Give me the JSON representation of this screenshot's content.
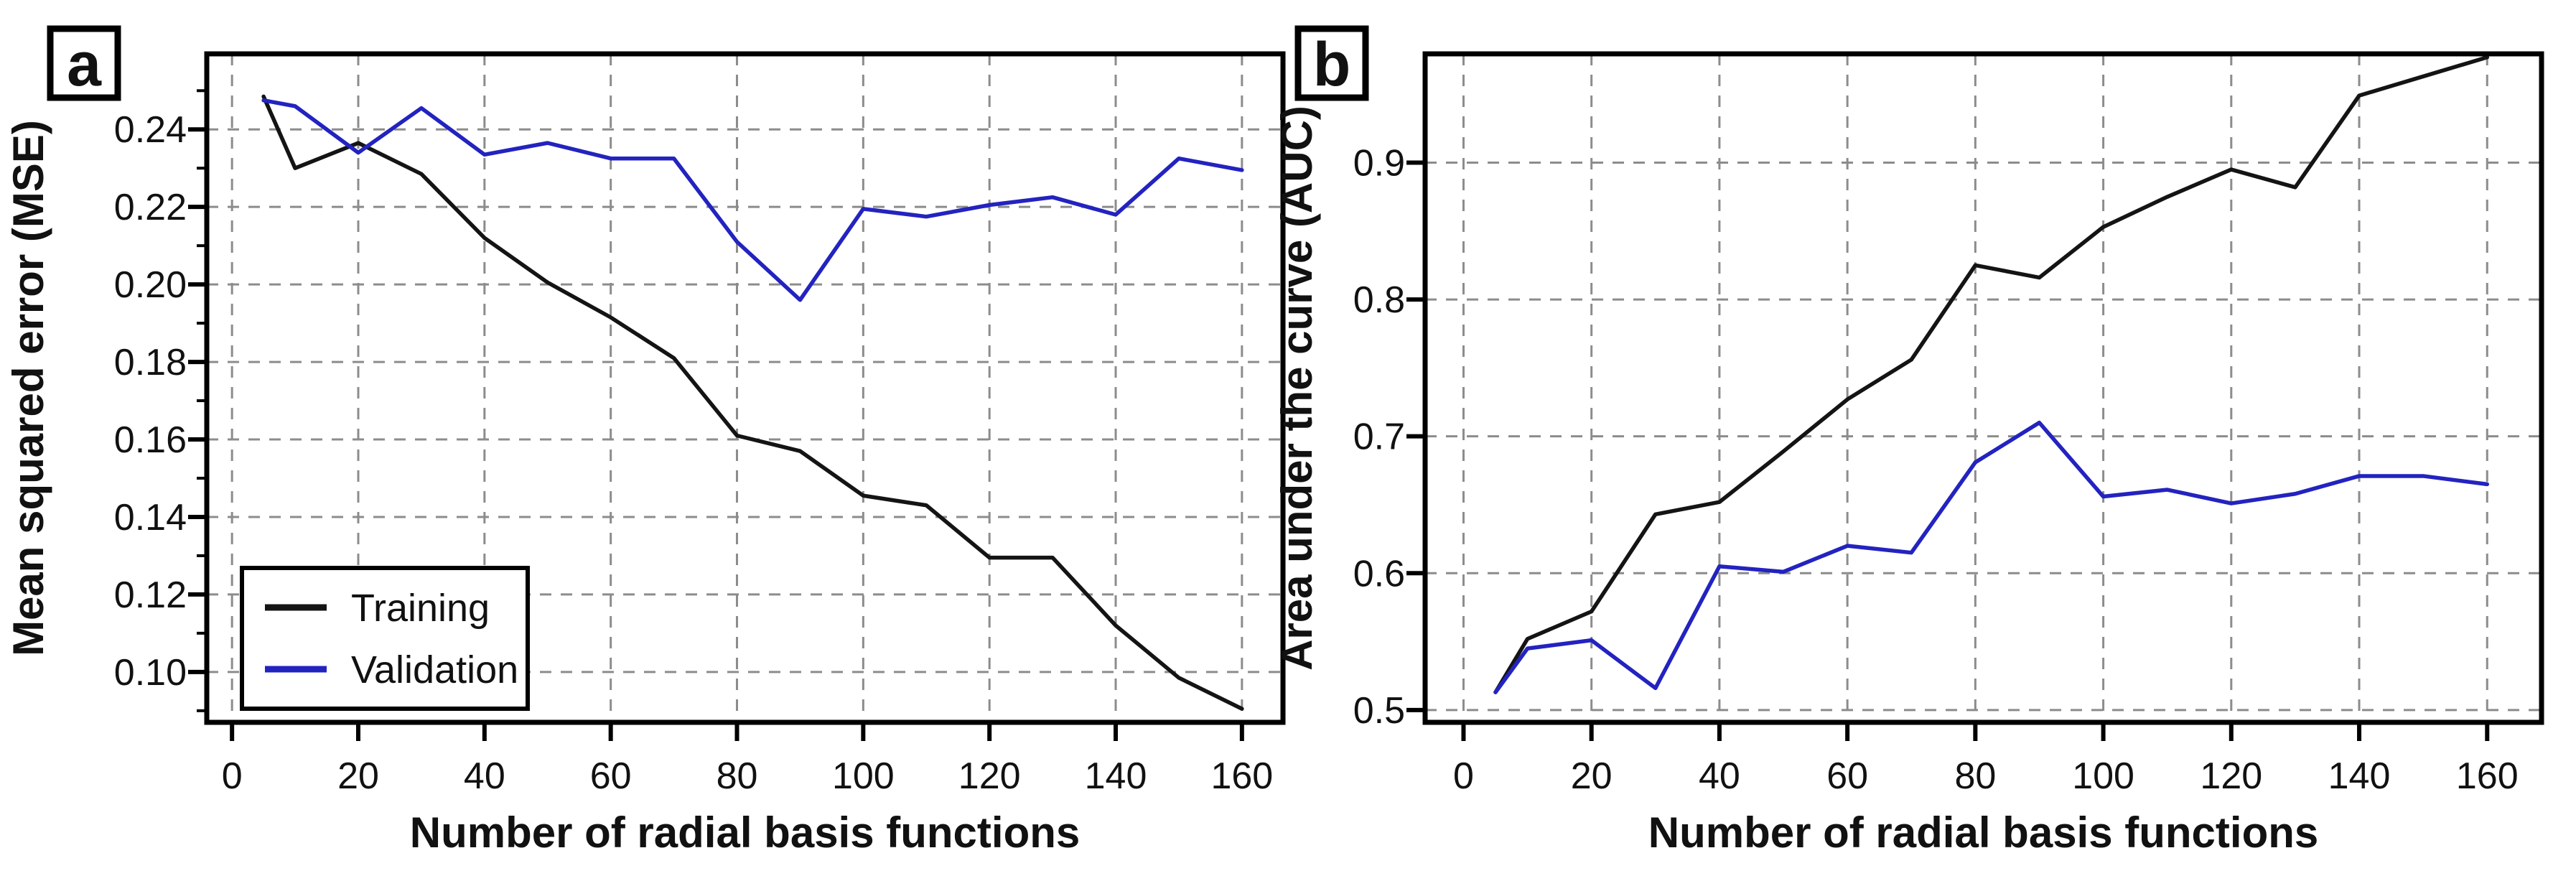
{
  "chart_data": [
    {
      "type": "line",
      "panel_label": "a",
      "title": "",
      "xlabel": "Number of radial basis functions",
      "ylabel": "Mean squared error (MSE)",
      "x": [
        5,
        10,
        20,
        30,
        40,
        50,
        60,
        70,
        80,
        90,
        100,
        110,
        120,
        130,
        140,
        150,
        160
      ],
      "series": [
        {
          "name": "Training",
          "color": "#141414",
          "values": [
            0.2485,
            0.23,
            0.2365,
            0.2285,
            0.212,
            0.2005,
            0.1915,
            0.181,
            0.161,
            0.157,
            0.1455,
            0.143,
            0.1295,
            0.1295,
            0.112,
            0.0985,
            0.0905
          ]
        },
        {
          "name": "Validation",
          "color": "#2323c0",
          "values": [
            0.2475,
            0.246,
            0.234,
            0.2455,
            0.2335,
            0.2365,
            0.2325,
            0.2325,
            0.211,
            0.196,
            0.2195,
            0.2175,
            0.2205,
            0.2225,
            0.218,
            0.2325,
            0.2295
          ]
        }
      ],
      "xlim": [
        -4,
        166.5
      ],
      "ylim": [
        0.087,
        0.2595
      ],
      "xticks": [
        0,
        20,
        40,
        60,
        80,
        100,
        120,
        140,
        160
      ],
      "xtick_labels": [
        "0",
        "20",
        "40",
        "60",
        "80",
        "100",
        "120",
        "140",
        "160"
      ],
      "yticks": [
        0.1,
        0.12,
        0.14,
        0.16,
        0.18,
        0.2,
        0.22,
        0.24
      ],
      "ytick_labels": [
        "0.10",
        "0.12",
        "0.14",
        "0.16",
        "0.18",
        "0.20",
        "0.22",
        "0.24"
      ],
      "yminor_ticks": [
        0.09,
        0.11,
        0.13,
        0.15,
        0.17,
        0.19,
        0.21,
        0.23,
        0.25
      ],
      "grid": true,
      "legend": {
        "position": "lower-left",
        "items": [
          "Training",
          "Validation"
        ]
      }
    },
    {
      "type": "line",
      "panel_label": "b",
      "title": "",
      "xlabel": "Number of radial basis functions",
      "ylabel": "Area under the curve (AUC)",
      "x": [
        5,
        10,
        20,
        30,
        40,
        50,
        60,
        70,
        80,
        90,
        100,
        110,
        120,
        130,
        140,
        150,
        160
      ],
      "series": [
        {
          "name": "Training",
          "color": "#141414",
          "values": [
            0.513,
            0.552,
            0.572,
            0.643,
            0.652,
            0.689,
            0.727,
            0.756,
            0.825,
            0.816,
            0.853,
            0.875,
            0.895,
            0.882,
            0.949,
            0.963,
            0.977
          ]
        },
        {
          "name": "Validation",
          "color": "#2323c0",
          "values": [
            0.513,
            0.545,
            0.551,
            0.516,
            0.605,
            0.601,
            0.62,
            0.615,
            0.681,
            0.71,
            0.656,
            0.661,
            0.651,
            0.658,
            0.671,
            0.671,
            0.665
          ]
        }
      ],
      "xlim": [
        -6,
        168.5
      ],
      "ylim": [
        0.491,
        0.9795
      ],
      "xticks": [
        0,
        20,
        40,
        60,
        80,
        100,
        120,
        140,
        160
      ],
      "xtick_labels": [
        "0",
        "20",
        "40",
        "60",
        "80",
        "100",
        "120",
        "140",
        "160"
      ],
      "yticks": [
        0.5,
        0.6,
        0.7,
        0.8,
        0.9
      ],
      "ytick_labels": [
        "0.5",
        "0.6",
        "0.7",
        "0.8",
        "0.9"
      ],
      "yminor_ticks": [],
      "grid": true,
      "legend": null
    }
  ],
  "style": {
    "grid_color": "#8c8c8c",
    "axis_color": "#000000",
    "background": "#ffffff"
  }
}
